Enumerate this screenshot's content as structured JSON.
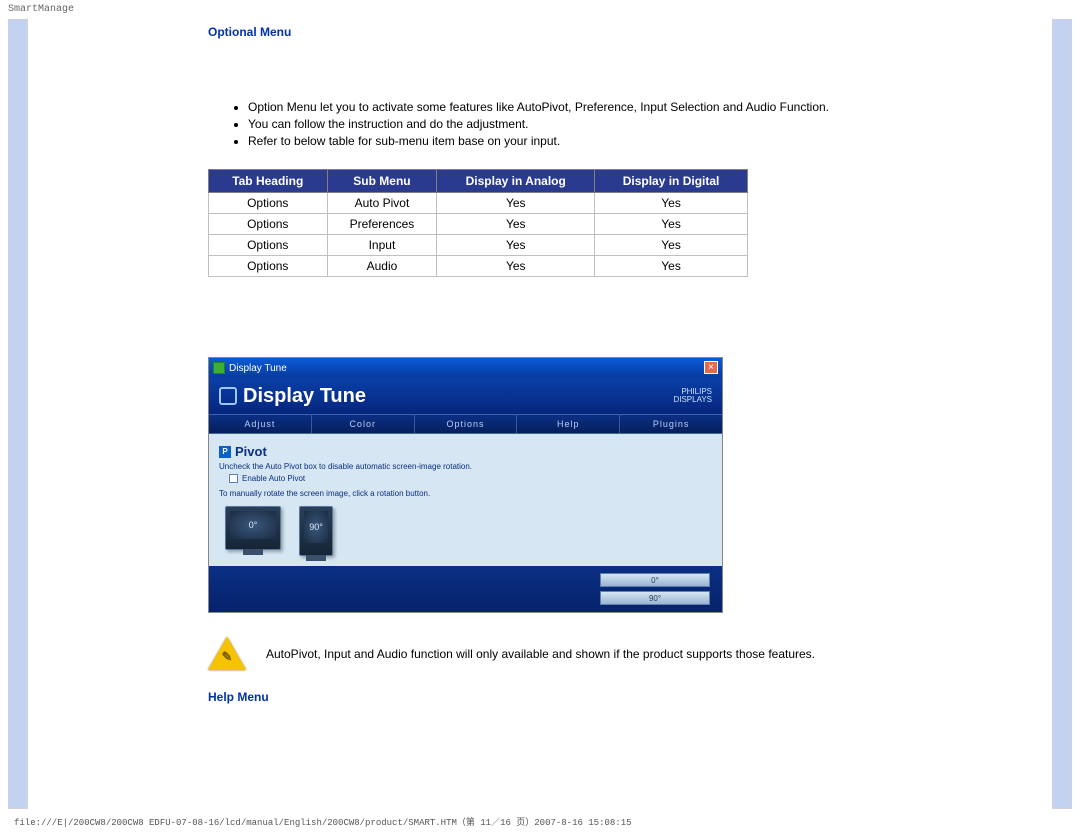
{
  "header_label": "SmartManage",
  "section_titles": {
    "optional_menu": "Optional Menu",
    "help_menu": "Help Menu"
  },
  "bullets": [
    "Option Menu let you to activate some features like AutoPivot, Preference, Input Selection and Audio Function.",
    "You can follow the instruction and do the adjustment.",
    "Refer to below table for sub-menu item base on your input."
  ],
  "table": {
    "columns": [
      "Tab Heading",
      "Sub Menu",
      "Display in Analog",
      "Display in Digital"
    ],
    "rows": [
      [
        "Options",
        "Auto Pivot",
        "Yes",
        "Yes"
      ],
      [
        "Options",
        "Preferences",
        "Yes",
        "Yes"
      ],
      [
        "Options",
        "Input",
        "Yes",
        "Yes"
      ],
      [
        "Options",
        "Audio",
        "Yes",
        "Yes"
      ]
    ],
    "header_bg": "#2a3b8f",
    "header_fg": "#ffffff",
    "border_color": "#808080",
    "cell_border_color": "#c0c0c0"
  },
  "screenshot": {
    "window_title": "Display Tune",
    "close_glyph": "×",
    "brand": "Display Tune",
    "model_top": "PHILIPS",
    "model_bottom": "DISPLAYS",
    "tabs": [
      "Adjust",
      "Color",
      "Options",
      "Help",
      "Plugins"
    ],
    "pivot_label": "Pivot",
    "hint1": "Uncheck the Auto Pivot box to disable automatic screen-image rotation.",
    "checkbox_label": "Enable Auto Pivot",
    "hint2": "To manually rotate the screen image, click a rotation button.",
    "mon0": "0°",
    "mon90": "90°",
    "btn0": "0°",
    "btn90": "90°"
  },
  "note_text": "AutoPivot, Input and Audio function will only available and shown if the product supports those features.",
  "warn_glyph": "✎",
  "footer_path": "file:///E|/200CW8/200CW8 EDFU-07-08-16/lcd/manual/English/200CW8/product/SMART.HTM（第 11／16 页）2007-8-16 15:08:15",
  "colors": {
    "stripe_bg": "#c4d2f1",
    "title_color": "#0033aa"
  }
}
